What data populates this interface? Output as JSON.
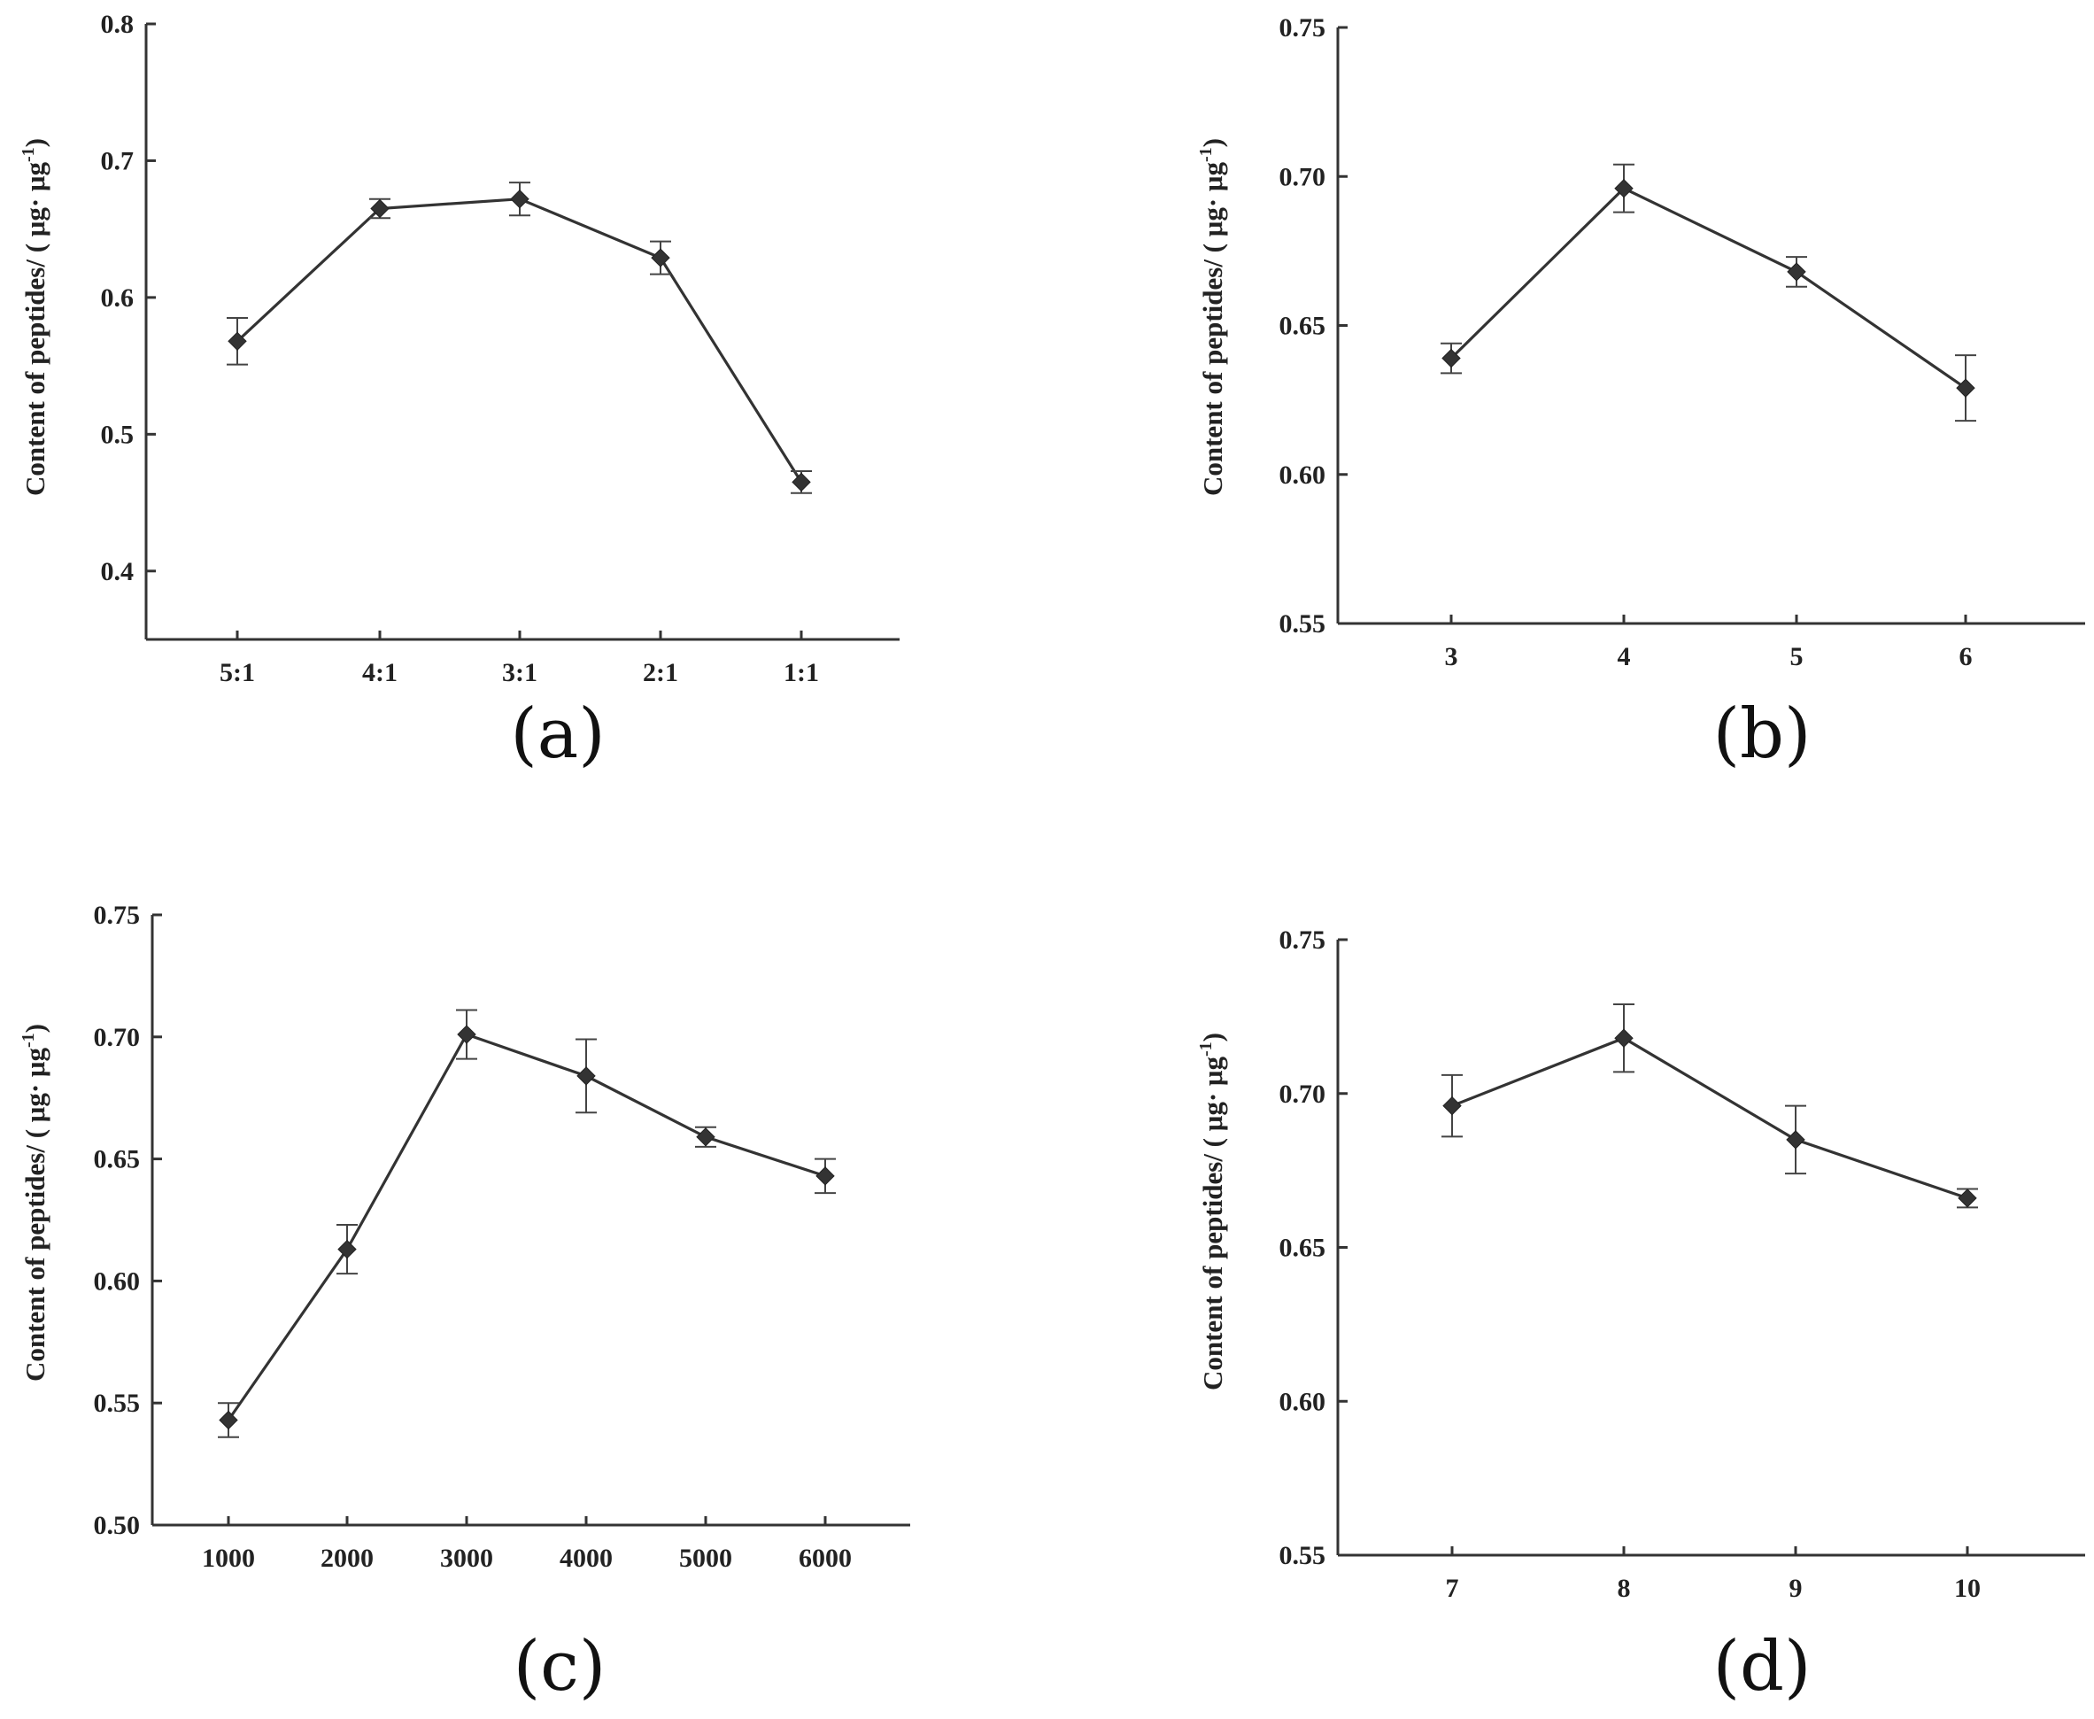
{
  "chart_data": [
    {
      "panel": "(a)",
      "type": "line",
      "ylabel": "Content of peptides/ ( μg· μg",
      "ylabel_sup": "-1",
      "ylabel_end": ")",
      "categories": [
        "5:1",
        "4:1",
        "3:1",
        "2:1",
        "1:1"
      ],
      "series": [
        {
          "values": [
            0.568,
            0.665,
            0.672,
            0.629,
            0.465
          ],
          "errors": [
            0.017,
            0.007,
            0.012,
            0.012,
            0.008
          ]
        }
      ],
      "ylim": [
        0.35,
        0.8
      ],
      "yticks": [
        0.4,
        0.5,
        0.6,
        0.7,
        0.8
      ],
      "yticklabels": [
        "0.4",
        "0.5",
        "0.6",
        "0.7",
        "0.8"
      ],
      "grid": false
    },
    {
      "panel": "(b)",
      "type": "line",
      "ylabel": "Content of peptides/ ( μg· μg",
      "ylabel_sup": "-1",
      "ylabel_end": ")",
      "categories": [
        "3",
        "4",
        "5",
        "6"
      ],
      "series": [
        {
          "values": [
            0.639,
            0.696,
            0.668,
            0.629
          ],
          "errors": [
            0.005,
            0.008,
            0.005,
            0.011
          ]
        }
      ],
      "ylim": [
        0.55,
        0.75
      ],
      "yticks": [
        0.55,
        0.6,
        0.65,
        0.7,
        0.75
      ],
      "yticklabels": [
        "0.55",
        "0.60",
        "0.65",
        "0.70",
        "0.75"
      ],
      "grid": false
    },
    {
      "panel": "(c)",
      "type": "line",
      "ylabel": "Content of peptides/ ( μg· μg",
      "ylabel_sup": "-1",
      "ylabel_end": ")",
      "categories": [
        "1000",
        "2000",
        "3000",
        "4000",
        "5000",
        "6000"
      ],
      "series": [
        {
          "values": [
            0.543,
            0.613,
            0.701,
            0.684,
            0.659,
            0.643
          ],
          "errors": [
            0.007,
            0.01,
            0.01,
            0.015,
            0.004,
            0.007
          ]
        }
      ],
      "ylim": [
        0.5,
        0.75
      ],
      "yticks": [
        0.5,
        0.55,
        0.6,
        0.65,
        0.7,
        0.75
      ],
      "yticklabels": [
        "0.50",
        "0.55",
        "0.60",
        "0.65",
        "0.70",
        "0.75"
      ],
      "grid": false
    },
    {
      "panel": "(d)",
      "type": "line",
      "ylabel": "Content of peptides/ ( μg· μg",
      "ylabel_sup": "-1",
      "ylabel_end": ")",
      "categories": [
        "7",
        "8",
        "9",
        "10"
      ],
      "series": [
        {
          "values": [
            0.696,
            0.718,
            0.685,
            0.666
          ],
          "errors": [
            0.01,
            0.011,
            0.011,
            0.003
          ]
        }
      ],
      "ylim": [
        0.55,
        0.75
      ],
      "yticks": [
        0.55,
        0.6,
        0.65,
        0.7,
        0.75
      ],
      "yticklabels": [
        "0.55",
        "0.60",
        "0.65",
        "0.70",
        "0.75"
      ],
      "grid": false
    }
  ]
}
